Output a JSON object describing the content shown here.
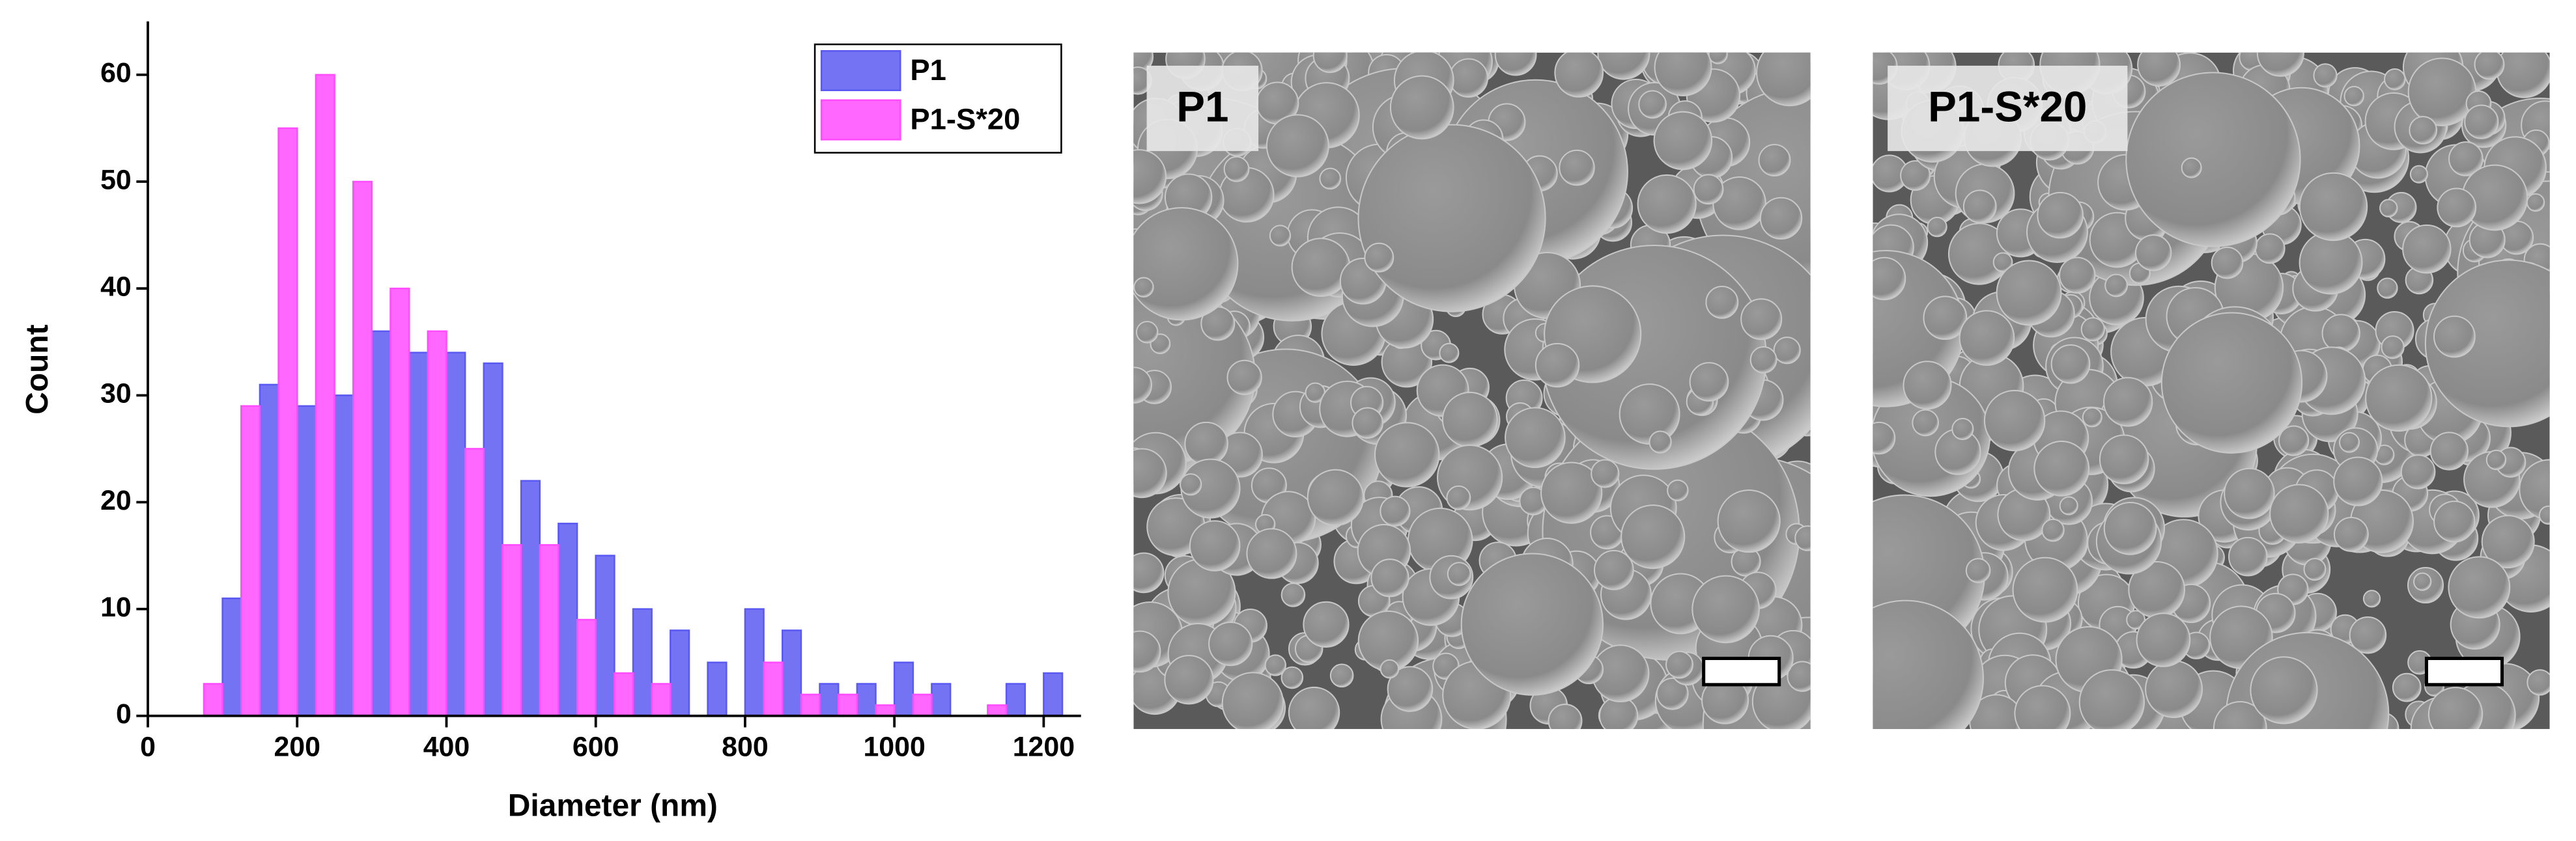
{
  "chart_data": {
    "type": "histogram",
    "x_label": "Diameter (nm)",
    "y_label": "Count",
    "bins": [
      75,
      125,
      175,
      225,
      275,
      325,
      375,
      425,
      475,
      525,
      575,
      625,
      675,
      725,
      775,
      825,
      875,
      925,
      975,
      1025,
      1075,
      1125,
      1175,
      1225
    ],
    "series": [
      {
        "name": "P1",
        "color": "#5a5af2",
        "values": [
          11,
          31,
          29,
          30,
          36,
          34,
          34,
          33,
          22,
          18,
          15,
          10,
          8,
          5,
          10,
          8,
          3,
          3,
          5,
          3,
          0,
          3,
          4
        ]
      },
      {
        "name": "P1-S*20",
        "color": "#ff4cff",
        "values": [
          3,
          29,
          55,
          60,
          50,
          40,
          36,
          25,
          16,
          16,
          9,
          4,
          3,
          0,
          0,
          5,
          2,
          2,
          1,
          2,
          0,
          1,
          0
        ]
      }
    ],
    "xlim": [
      0,
      1250
    ],
    "ylim": [
      0,
      65
    ],
    "xticks": [
      0,
      200,
      400,
      600,
      800,
      1000,
      1200
    ],
    "yticks": [
      0,
      10,
      20,
      30,
      40,
      50,
      60
    ],
    "legend": "upper right"
  },
  "images": [
    {
      "label": "P1"
    },
    {
      "label": "P1-S*20"
    }
  ]
}
